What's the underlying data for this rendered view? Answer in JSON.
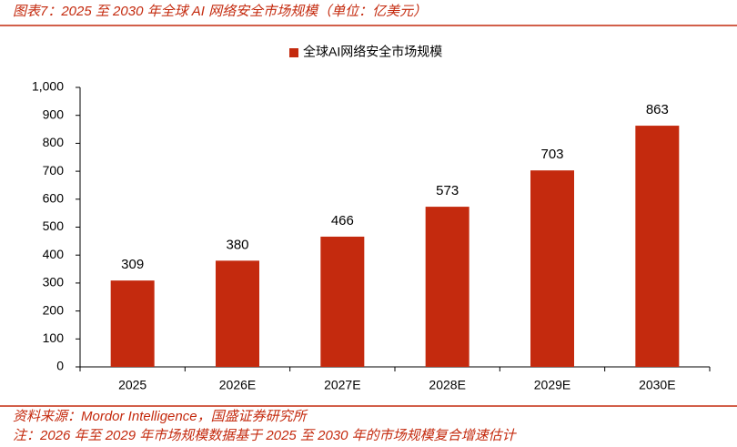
{
  "chart_data": {
    "type": "bar",
    "title": "图表7：2025 至 2030 年全球 AI 网络安全市场规模（单位：亿美元）",
    "categories": [
      "2025",
      "2026E",
      "2027E",
      "2028E",
      "2029E",
      "2030E"
    ],
    "series": [
      {
        "name": "全球AI网络安全市场规模",
        "color": "#c42a0e",
        "values": [
          309,
          380,
          466,
          573,
          703,
          863
        ]
      }
    ],
    "ylim": [
      0,
      1000
    ],
    "yticks": [
      0,
      100,
      200,
      300,
      400,
      500,
      600,
      700,
      800,
      900,
      {
        "value": 1000,
        "label": "1,000"
      }
    ],
    "legend": "top",
    "source": "资料来源：Mordor Intelligence，国盛证券研究所",
    "note": "注：2026 年至 2029 年市场规模数据基于 2025 至 2030 年的市场规模复合增速估计"
  }
}
